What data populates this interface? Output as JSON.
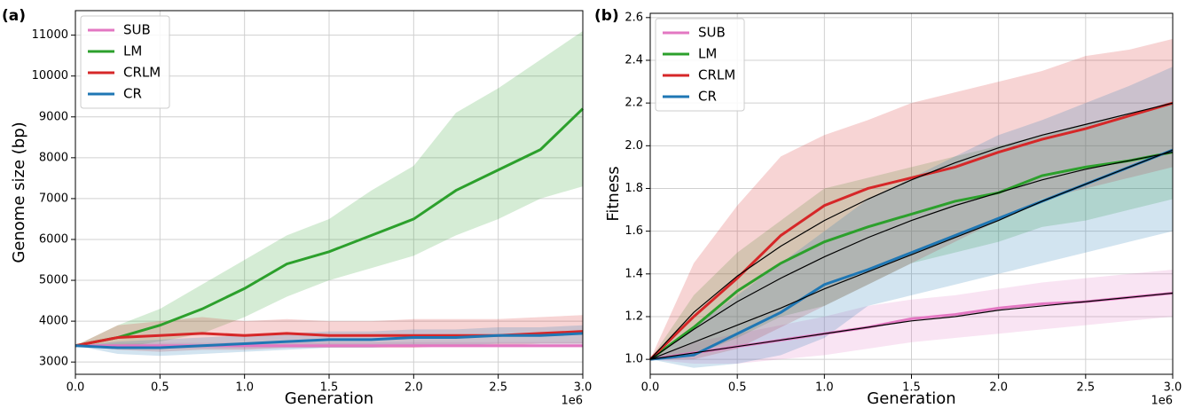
{
  "chart_data": [
    {
      "type": "line",
      "panel_label": "(a)",
      "xlabel": "Generation",
      "ylabel": "Genome size (bp)",
      "x_offset_label": "1e6",
      "x": [
        0,
        0.25,
        0.5,
        0.75,
        1.0,
        1.25,
        1.5,
        1.75,
        2.0,
        2.25,
        2.5,
        2.75,
        3.0
      ],
      "xlim": [
        0,
        3.0
      ],
      "xticks": [
        {
          "value": 0,
          "label": "0.0"
        },
        0.5,
        {
          "value": 1,
          "label": "1.0"
        },
        1.5,
        {
          "value": 2,
          "label": "2.0"
        },
        2.5,
        {
          "value": 3,
          "label": "3.0"
        }
      ],
      "ylim": [
        2700,
        11600
      ],
      "yticks": [
        3000,
        4000,
        5000,
        6000,
        7000,
        8000,
        9000,
        10000,
        11000
      ],
      "grid": true,
      "legend": "upper left",
      "series": [
        {
          "name": "SUB",
          "color": "#e377c2",
          "values": [
            3400,
            3400,
            3400,
            3400,
            3400,
            3400,
            3400,
            3400,
            3400,
            3400,
            3400,
            3400,
            3400
          ],
          "lower": [
            3400,
            3350,
            3330,
            3330,
            3340,
            3340,
            3350,
            3350,
            3350,
            3350,
            3350,
            3350,
            3350
          ],
          "upper": [
            3400,
            3450,
            3470,
            3470,
            3480,
            3480,
            3480,
            3480,
            3490,
            3490,
            3490,
            3490,
            3490
          ]
        },
        {
          "name": "LM",
          "color": "#2ca02c",
          "values": [
            3400,
            3600,
            3900,
            4300,
            4800,
            5400,
            5700,
            6100,
            6500,
            7200,
            7700,
            8200,
            9200
          ],
          "lower": [
            3400,
            3350,
            3500,
            3700,
            4100,
            4600,
            5000,
            5300,
            5600,
            6100,
            6500,
            7000,
            7300
          ],
          "upper": [
            3400,
            3900,
            4300,
            4900,
            5500,
            6100,
            6500,
            7200,
            7800,
            9100,
            9700,
            10400,
            11100
          ]
        },
        {
          "name": "CRLM",
          "color": "#d62728",
          "values": [
            3400,
            3600,
            3650,
            3700,
            3650,
            3700,
            3650,
            3650,
            3650,
            3650,
            3650,
            3700,
            3750
          ],
          "lower": [
            3400,
            3300,
            3250,
            3300,
            3300,
            3350,
            3350,
            3350,
            3350,
            3400,
            3400,
            3450,
            3450
          ],
          "upper": [
            3400,
            3900,
            4000,
            4100,
            4000,
            4050,
            4000,
            4000,
            4050,
            4050,
            4050,
            4100,
            4150
          ]
        },
        {
          "name": "CR",
          "color": "#1f77b4",
          "values": [
            3400,
            3350,
            3350,
            3400,
            3450,
            3500,
            3550,
            3550,
            3600,
            3600,
            3650,
            3650,
            3700
          ],
          "lower": [
            3400,
            3200,
            3150,
            3200,
            3250,
            3300,
            3350,
            3350,
            3400,
            3400,
            3450,
            3450,
            3450
          ],
          "upper": [
            3400,
            3500,
            3550,
            3600,
            3650,
            3700,
            3750,
            3750,
            3800,
            3800,
            3850,
            3850,
            3900
          ]
        }
      ]
    },
    {
      "type": "line",
      "panel_label": "(b)",
      "xlabel": "Generation",
      "ylabel": "Fitness",
      "x_offset_label": "1e6",
      "x": [
        0,
        0.25,
        0.5,
        0.75,
        1.0,
        1.25,
        1.5,
        1.75,
        2.0,
        2.25,
        2.5,
        2.75,
        3.0
      ],
      "xlim": [
        0,
        3.0
      ],
      "xticks": [
        {
          "value": 0,
          "label": "0.0"
        },
        0.5,
        {
          "value": 1,
          "label": "1.0"
        },
        1.5,
        {
          "value": 2,
          "label": "2.0"
        },
        2.5,
        {
          "value": 3,
          "label": "3.0"
        }
      ],
      "ylim": [
        0.93,
        2.62
      ],
      "yticks": [
        {
          "value": 1,
          "label": "1.0"
        },
        1.2,
        1.4,
        1.6,
        1.8,
        {
          "value": 2,
          "label": "2.0"
        },
        2.2,
        2.4,
        2.6
      ],
      "grid": true,
      "legend": "upper left",
      "series": [
        {
          "name": "SUB",
          "color": "#e377c2",
          "values": [
            1.0,
            1.03,
            1.06,
            1.09,
            1.12,
            1.15,
            1.19,
            1.21,
            1.24,
            1.26,
            1.27,
            1.29,
            1.31
          ],
          "lower": [
            1.0,
            0.98,
            0.98,
            1.0,
            1.02,
            1.05,
            1.08,
            1.1,
            1.12,
            1.14,
            1.16,
            1.18,
            1.2
          ],
          "upper": [
            1.0,
            1.08,
            1.12,
            1.16,
            1.2,
            1.25,
            1.28,
            1.3,
            1.33,
            1.36,
            1.38,
            1.4,
            1.42
          ]
        },
        {
          "name": "LM",
          "color": "#2ca02c",
          "values": [
            1.0,
            1.15,
            1.32,
            1.45,
            1.55,
            1.62,
            1.68,
            1.74,
            1.78,
            1.86,
            1.9,
            1.93,
            1.97
          ],
          "lower": [
            1.0,
            1.02,
            1.1,
            1.2,
            1.25,
            1.35,
            1.45,
            1.5,
            1.55,
            1.62,
            1.65,
            1.7,
            1.75
          ],
          "upper": [
            1.0,
            1.3,
            1.5,
            1.65,
            1.8,
            1.85,
            1.9,
            1.95,
            2.0,
            2.05,
            2.1,
            2.15,
            2.2
          ]
        },
        {
          "name": "CRLM",
          "color": "#d62728",
          "values": [
            1.0,
            1.2,
            1.38,
            1.58,
            1.72,
            1.8,
            1.85,
            1.9,
            1.97,
            2.03,
            2.08,
            2.14,
            2.2
          ],
          "lower": [
            1.0,
            1.0,
            1.05,
            1.15,
            1.25,
            1.35,
            1.45,
            1.55,
            1.65,
            1.75,
            1.8,
            1.85,
            1.9
          ],
          "upper": [
            1.0,
            1.45,
            1.72,
            1.95,
            2.05,
            2.12,
            2.2,
            2.25,
            2.3,
            2.35,
            2.42,
            2.45,
            2.5
          ]
        },
        {
          "name": "CR",
          "color": "#1f77b4",
          "values": [
            1.0,
            1.02,
            1.12,
            1.22,
            1.35,
            1.42,
            1.5,
            1.58,
            1.66,
            1.74,
            1.82,
            1.9,
            1.98
          ],
          "lower": [
            1.0,
            0.96,
            0.98,
            1.02,
            1.1,
            1.25,
            1.3,
            1.35,
            1.4,
            1.45,
            1.5,
            1.55,
            1.6
          ],
          "upper": [
            1.0,
            1.15,
            1.3,
            1.45,
            1.6,
            1.75,
            1.85,
            1.95,
            2.05,
            2.12,
            2.2,
            2.28,
            2.37
          ]
        }
      ],
      "fits": [
        {
          "color": "#000000",
          "values": [
            1.0,
            1.03,
            1.06,
            1.09,
            1.12,
            1.15,
            1.18,
            1.2,
            1.23,
            1.25,
            1.27,
            1.29,
            1.31
          ]
        },
        {
          "color": "#000000",
          "values": [
            1.0,
            1.14,
            1.27,
            1.38,
            1.48,
            1.57,
            1.65,
            1.72,
            1.78,
            1.84,
            1.89,
            1.93,
            1.97
          ]
        },
        {
          "color": "#000000",
          "values": [
            1.0,
            1.22,
            1.39,
            1.53,
            1.65,
            1.75,
            1.84,
            1.92,
            1.99,
            2.05,
            2.1,
            2.15,
            2.2
          ]
        },
        {
          "color": "#000000",
          "values": [
            1.0,
            1.08,
            1.16,
            1.24,
            1.33,
            1.41,
            1.49,
            1.57,
            1.65,
            1.74,
            1.82,
            1.9,
            1.98
          ]
        }
      ]
    }
  ]
}
